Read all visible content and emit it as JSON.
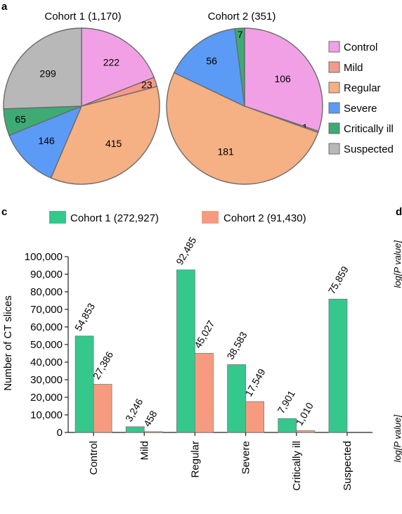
{
  "panels": {
    "a": "a",
    "c": "c",
    "d": "d"
  },
  "colors": {
    "Control": "#f2a0e6",
    "Mild": "#f59a8a",
    "Regular": "#f5b084",
    "Severe": "#5b9bf5",
    "Critically ill": "#3cab74",
    "Suspected": "#b8b8b8",
    "Cohort 1": "#34c88c",
    "Cohort 2": "#f79b80"
  },
  "legend_pie": [
    "Control",
    "Mild",
    "Regular",
    "Severe",
    "Critically ill",
    "Suspected"
  ],
  "legend_bar": [
    "Cohort 1 (272,927)",
    "Cohort 2 (91,430)"
  ],
  "cut_labels": [
    "log[P value]",
    "log[P value]"
  ],
  "chart_data": [
    {
      "type": "pie",
      "title": "Cohort 1 (1,170)",
      "slices": [
        {
          "label": "Control",
          "value": 222
        },
        {
          "label": "Mild",
          "value": 23
        },
        {
          "label": "Regular",
          "value": 415
        },
        {
          "label": "Severe",
          "value": 146
        },
        {
          "label": "Critically ill",
          "value": 65
        },
        {
          "label": "Suspected",
          "value": 299
        }
      ]
    },
    {
      "type": "pie",
      "title": "Cohort 2 (351)",
      "slices": [
        {
          "label": "Control",
          "value": 106
        },
        {
          "label": "Mild",
          "value": 1
        },
        {
          "label": "Regular",
          "value": 181
        },
        {
          "label": "Severe",
          "value": 56
        },
        {
          "label": "Critically ill",
          "value": 7
        }
      ]
    },
    {
      "type": "bar",
      "categories": [
        "Control",
        "Mild",
        "Regular",
        "Severe",
        "Critically ill",
        "Suspected"
      ],
      "series": [
        {
          "name": "Cohort 1 (272,927)",
          "values": [
            54853,
            3246,
            92485,
            38583,
            7901,
            75859
          ],
          "labels": [
            "54,853",
            "3,246",
            "92,485",
            "38,583",
            "7,901",
            "75,859"
          ]
        },
        {
          "name": "Cohort 2 (91,430)",
          "values": [
            27386,
            458,
            45027,
            17549,
            1010,
            null
          ],
          "labels": [
            "27,386",
            "458",
            "45,027",
            "17,549",
            "1,010",
            ""
          ]
        }
      ],
      "ylabel": "Number of CT slices",
      "ylim": [
        0,
        100000
      ],
      "yticks": [
        "0",
        "10,000",
        "20,000",
        "30,000",
        "40,000",
        "50,000",
        "60,000",
        "70,000",
        "80,000",
        "90,000",
        "100,000"
      ],
      "legend": "top",
      "grid": false
    }
  ]
}
